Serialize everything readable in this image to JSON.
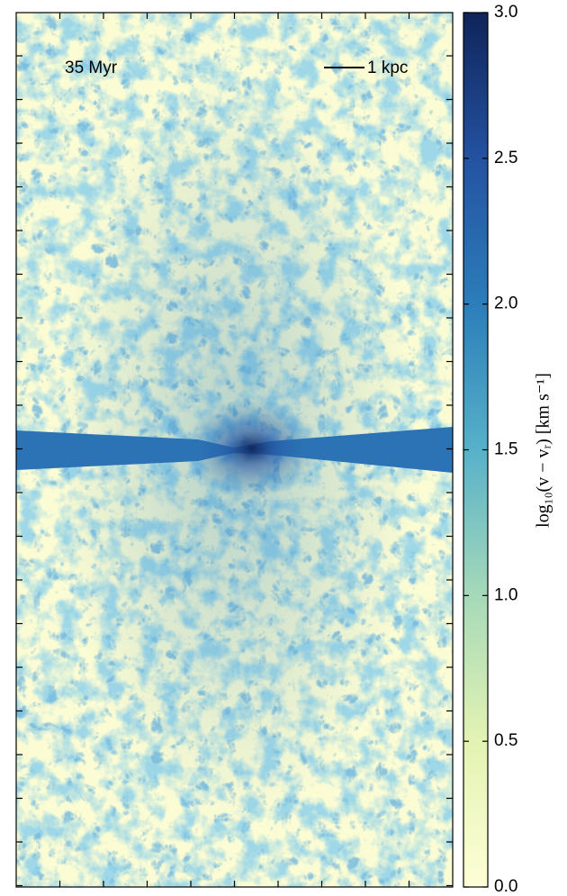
{
  "chart_data": {
    "type": "image",
    "annotations": [
      "35 Myr",
      "1 kpc"
    ],
    "colorbar_label": "log₁₀(v − vᵣ) [km s⁻¹]",
    "colormap": [
      "#fefed6",
      "#e3f3b3",
      "#a6d9b9",
      "#57b1c9",
      "#2c7db9",
      "#2452a1",
      "#0f2459"
    ],
    "ylim": [
      0,
      3
    ],
    "yticks": [
      {
        "value": 0,
        "label": "0.0"
      },
      0.5,
      {
        "value": 1,
        "label": "1.0"
      },
      1.5,
      {
        "value": 2,
        "label": "2.0"
      },
      2.5,
      {
        "value": 3,
        "label": "3.0"
      }
    ]
  }
}
